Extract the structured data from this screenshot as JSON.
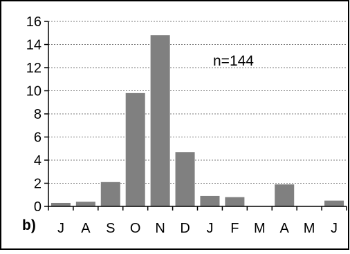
{
  "chart_data": {
    "type": "bar",
    "panel_label": "b)",
    "annotation": "n=144",
    "categories": [
      "J",
      "A",
      "S",
      "O",
      "N",
      "D",
      "J",
      "F",
      "M",
      "A",
      "M",
      "J"
    ],
    "values": [
      0.3,
      0.4,
      2.1,
      9.8,
      14.8,
      4.7,
      0.9,
      0.8,
      0,
      1.9,
      0,
      0.5
    ],
    "ylim": [
      0,
      16
    ],
    "yticks": [
      0,
      2,
      4,
      6,
      8,
      10,
      12,
      14,
      16
    ],
    "grid": true,
    "grid_style": "dashed-horizontal",
    "bar_color": "#808080",
    "grid_color": "#7a7a7a",
    "legend": "none",
    "title": "",
    "xlabel": "",
    "ylabel": ""
  }
}
